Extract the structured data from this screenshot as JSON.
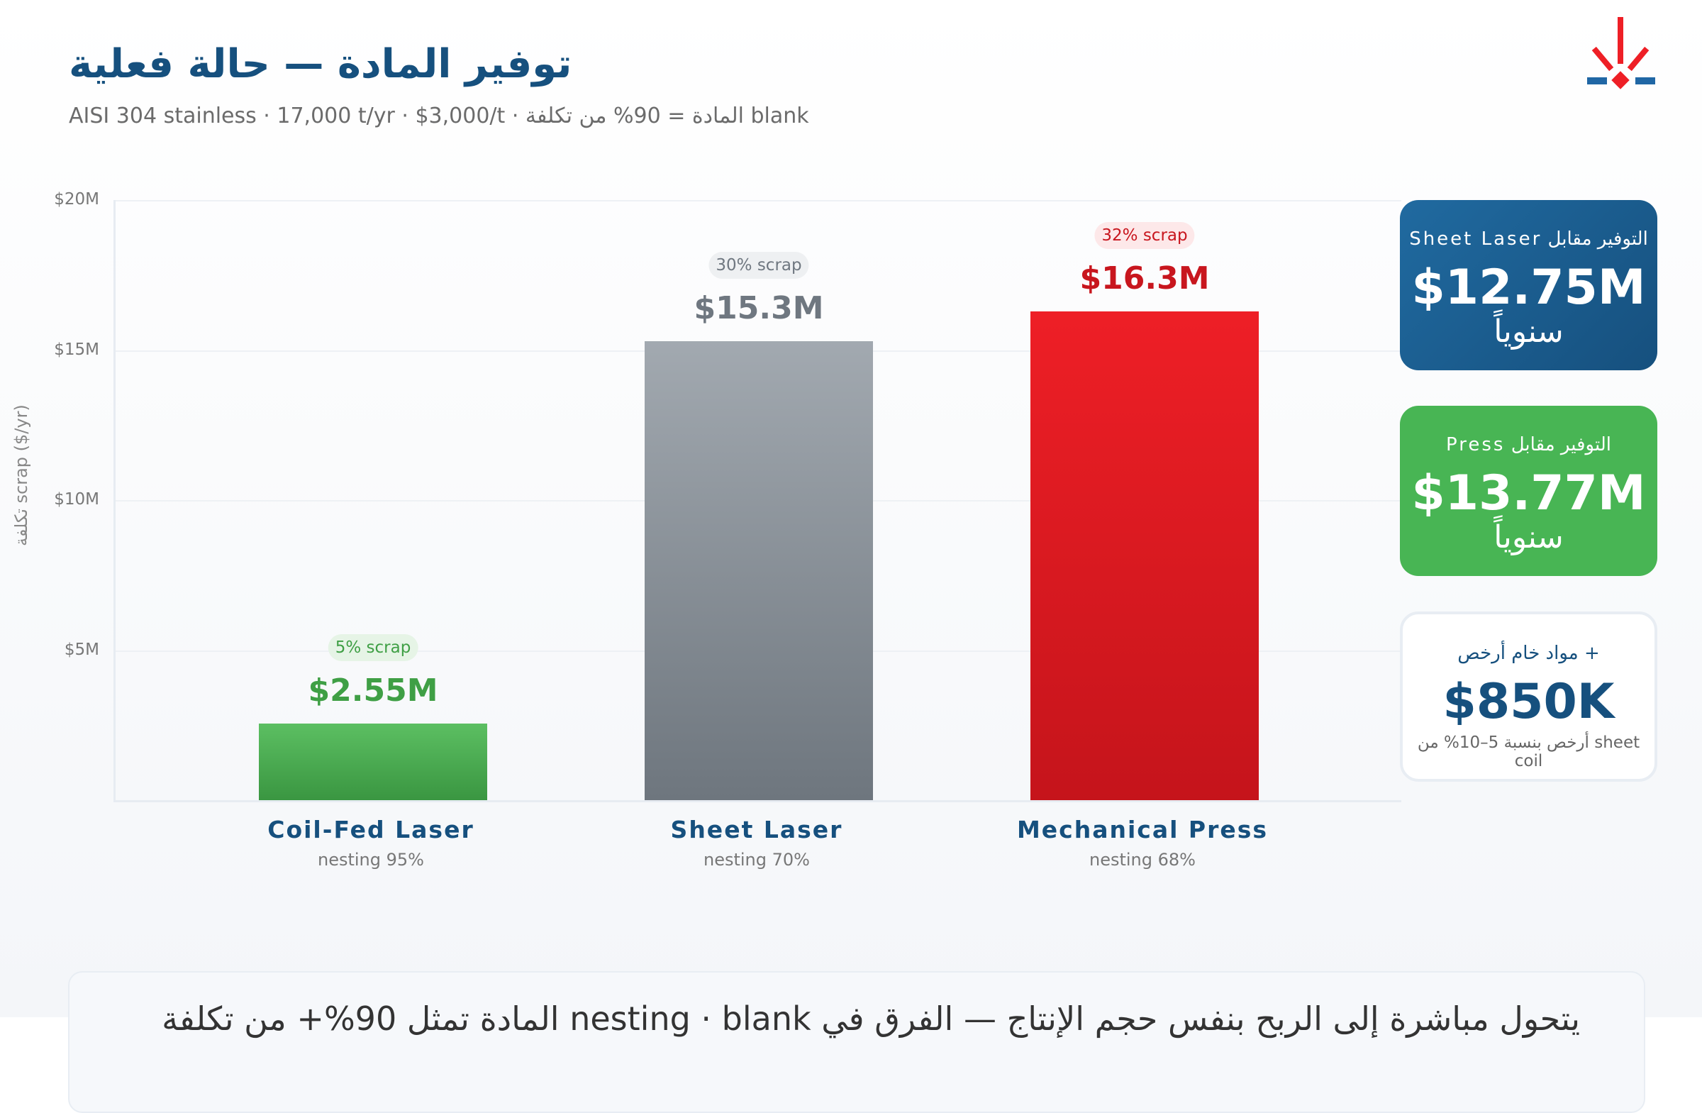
{
  "header": {
    "title": "توفير المادة — حالة فعلية",
    "subtitle": "AISI 304 stainless · 17,000 t/yr · $3,000/t · المادة = 90% من تكلفة blank"
  },
  "colors": {
    "brand": "#16507e",
    "green": "#3f9f45",
    "gray": "#6f7780",
    "red": "#c8161e"
  },
  "cards": [
    {
      "label": "التوفير مقابل Sheet Laser",
      "value": "$12.75M",
      "sub": "سنوياً",
      "bg": "#1b5a8c"
    },
    {
      "label": "التوفير مقابل Press",
      "value": "$13.77M",
      "sub": "سنوياً",
      "bg": "#48b554"
    },
    {
      "label": "+ مواد خام أرخص",
      "value": "$850K",
      "sub": "sheet أرخص بنسبة 5–10% من coil",
      "bg": "#ffffff"
    }
  ],
  "note": {
    "text": "يتحول مباشرة إلى الربح بنفس حجم الإنتاج — الفرق في nesting · blank المادة تمثل 90%+ من تكلفة"
  },
  "chart_data": {
    "type": "bar",
    "title": "",
    "ylabel": "تكلفة scrap ($/yr)",
    "ylim": [
      0,
      20
    ],
    "yticks": [
      "$5M",
      "$10M",
      "$15M",
      "$20M"
    ],
    "ytick_values": [
      5,
      10,
      15,
      20
    ],
    "categories": [
      "Coil-Fed Laser",
      "Sheet Laser",
      "Mechanical Press"
    ],
    "values": [
      2.55,
      15.3,
      16.3
    ],
    "value_labels": [
      "$2.55M",
      "$15.3M",
      "$16.3M"
    ],
    "scrap_labels": [
      "5% scrap",
      "30% scrap",
      "32% scrap"
    ],
    "nesting_labels": [
      "nesting 95%",
      "nesting 70%",
      "nesting 68%"
    ],
    "units": "$M/yr",
    "grid": true
  }
}
